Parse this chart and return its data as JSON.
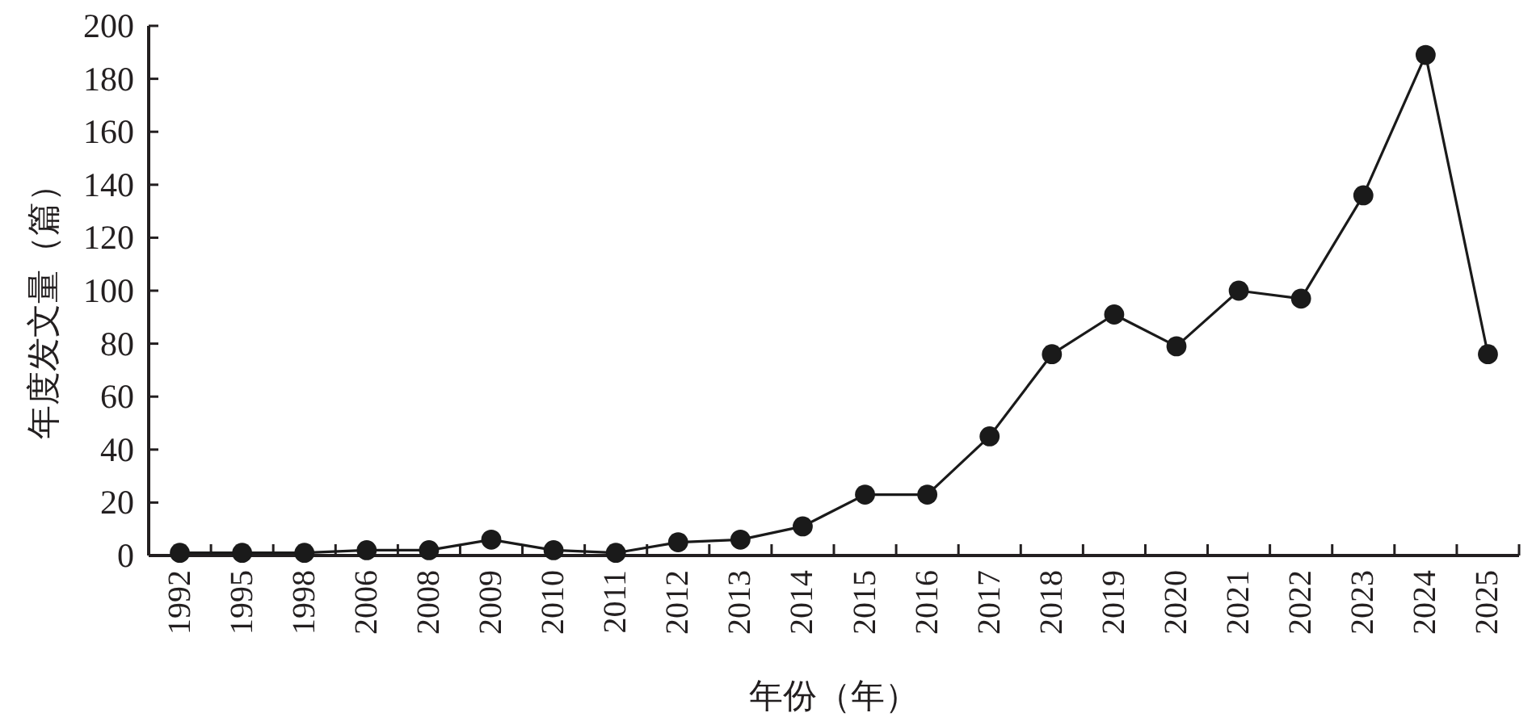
{
  "chart_data": {
    "type": "line",
    "xlabel": "年份（年）",
    "ylabel": "年度发文量（篇）",
    "categories": [
      "1992",
      "1995",
      "1998",
      "2006",
      "2008",
      "2009",
      "2010",
      "2011",
      "2012",
      "2013",
      "2014",
      "2015",
      "2016",
      "2017",
      "2018",
      "2019",
      "2020",
      "2021",
      "2022",
      "2023",
      "2024",
      "2025"
    ],
    "series": [
      {
        "color": "#1a1a1a",
        "values": [
          1,
          1,
          1,
          2,
          2,
          6,
          2,
          1,
          5,
          6,
          11,
          23,
          23,
          45,
          76,
          91,
          79,
          100,
          97,
          136,
          189,
          76
        ]
      }
    ],
    "ylim": [
      0,
      200
    ],
    "yticks": [
      0,
      20,
      40,
      60,
      80,
      100,
      120,
      140,
      160,
      180,
      200
    ],
    "marker": "circle",
    "line_style": "solid"
  }
}
